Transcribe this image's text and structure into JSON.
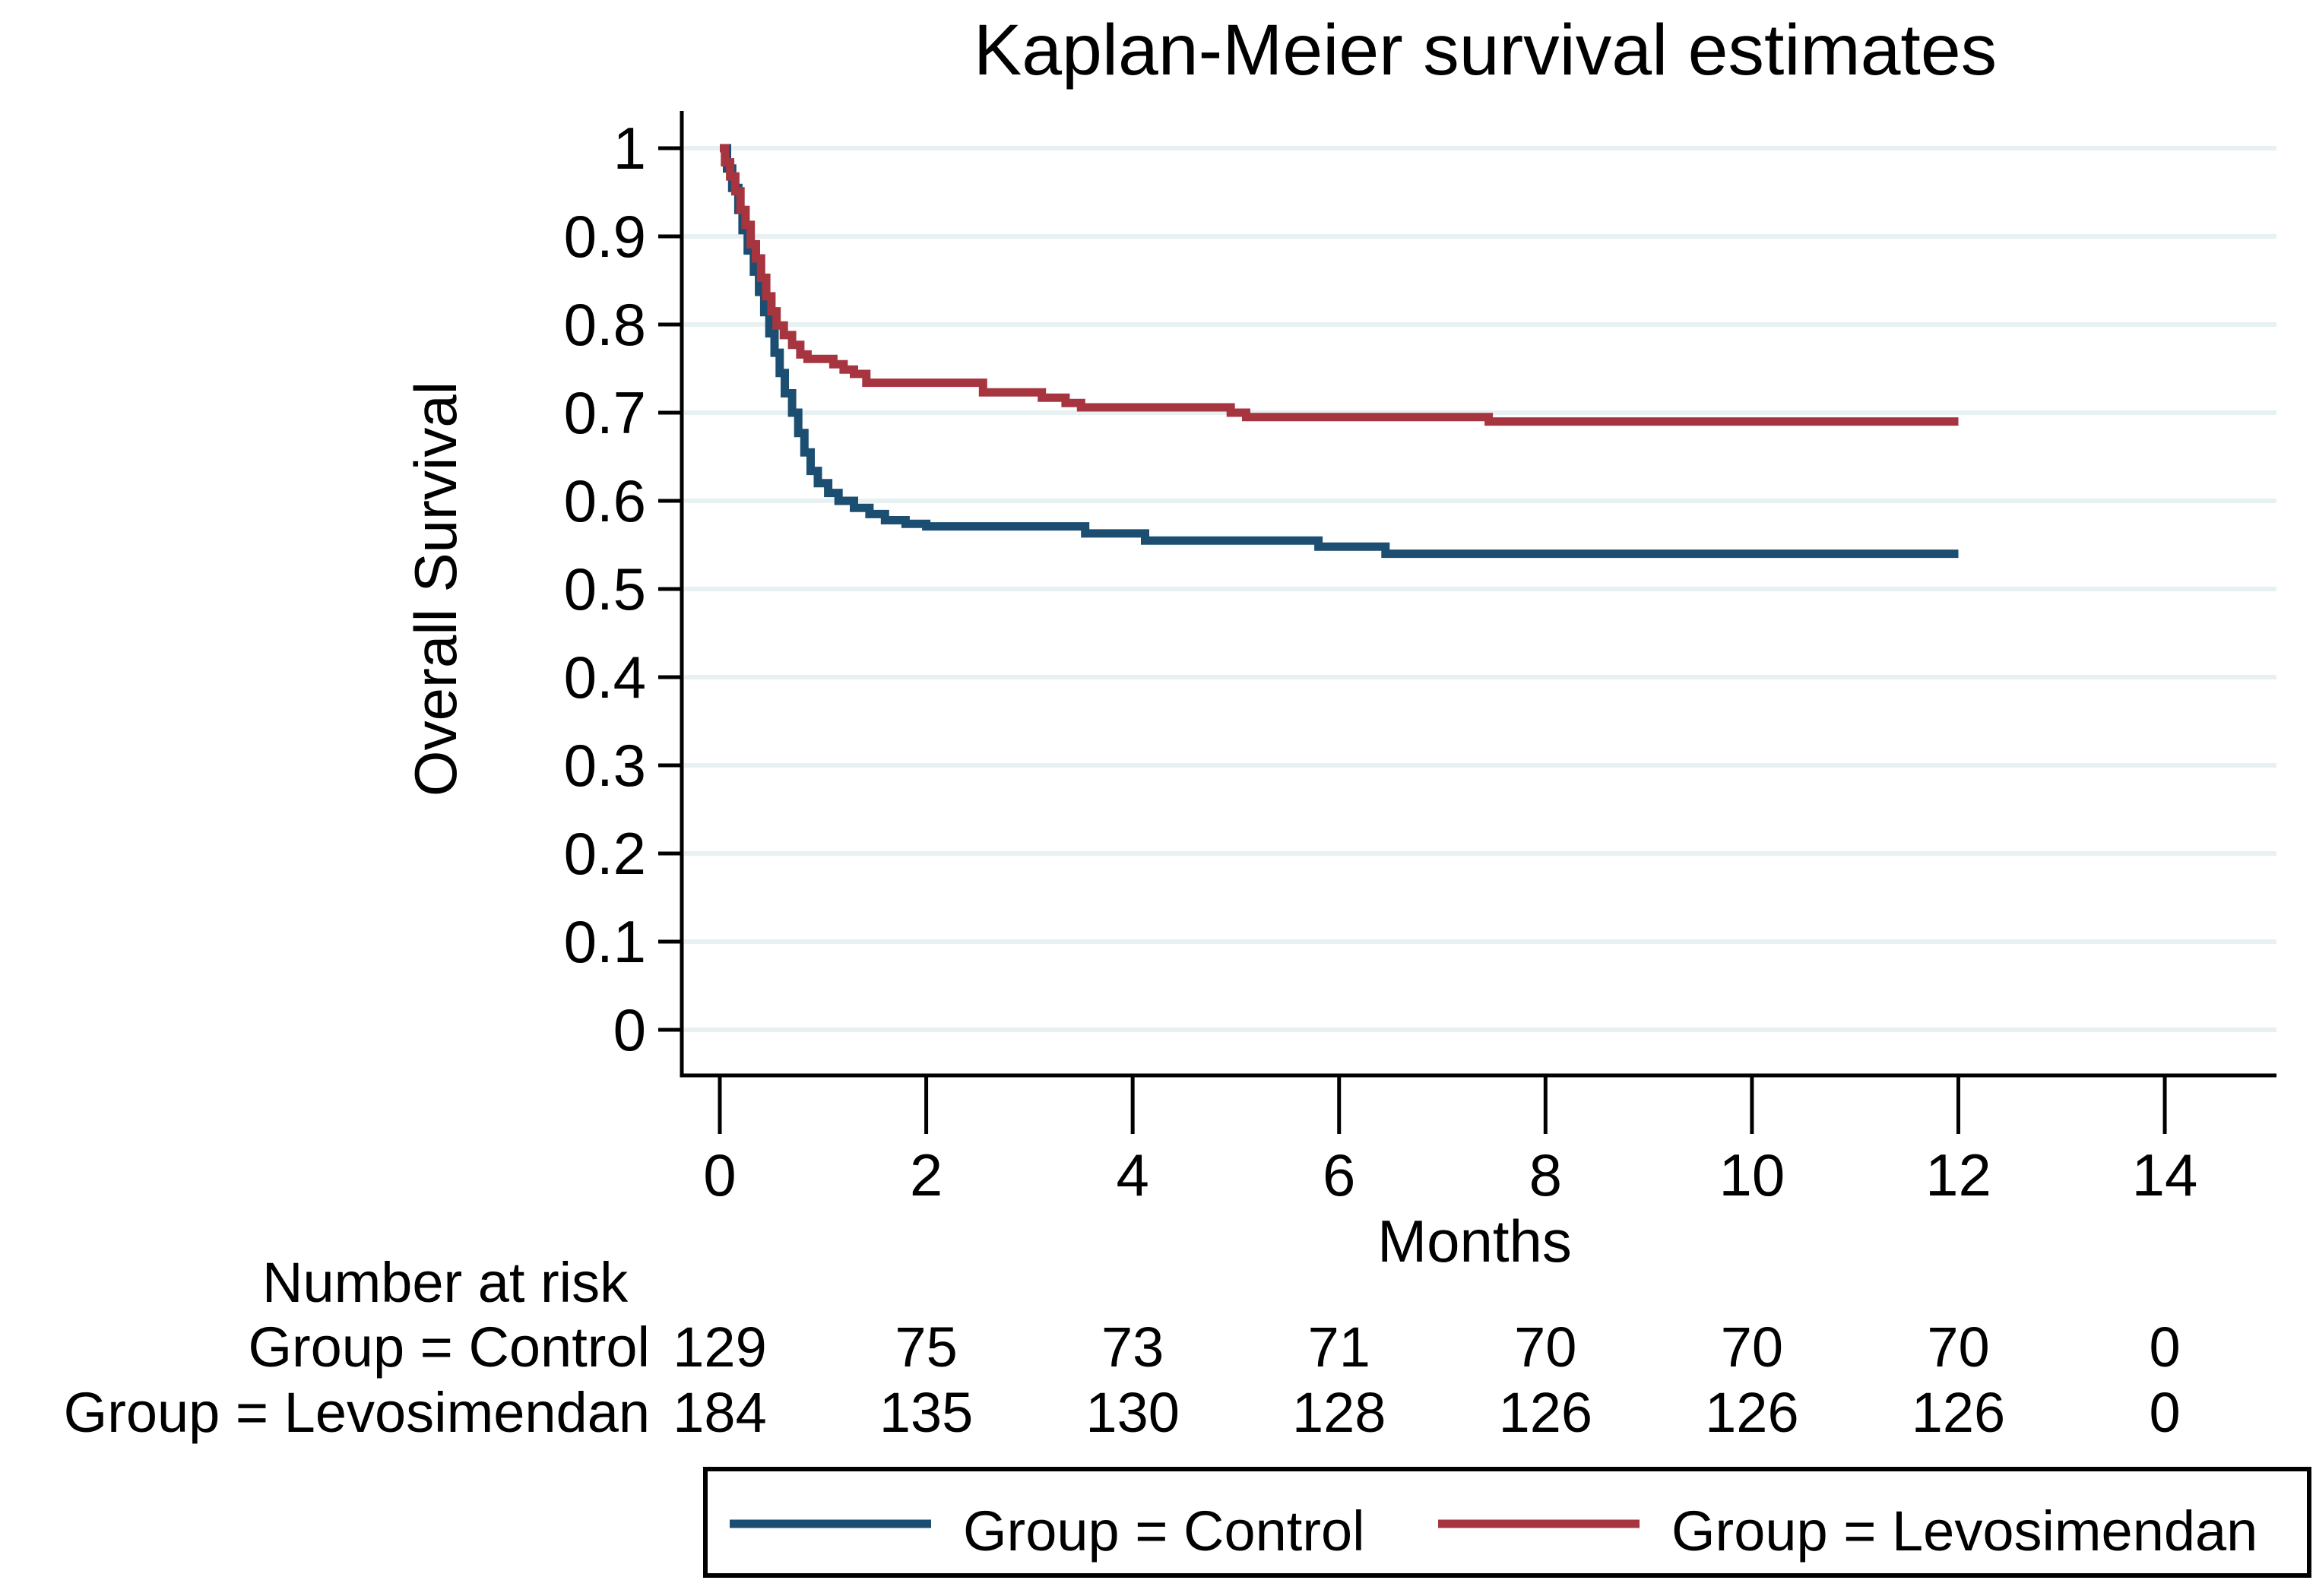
{
  "figure": {
    "background_color": "#ffffff",
    "axis_color": "#000000",
    "title_color": "#1f3a63"
  },
  "chart_data": {
    "type": "line",
    "subtype": "kaplan-meier-step-survival",
    "title": "Kaplan-Meier survival estimates",
    "xlabel": "Months",
    "ylabel": "Overall Survival",
    "xlim": [
      0,
      15
    ],
    "ylim": [
      0,
      1
    ],
    "xticks": [
      0,
      2,
      4,
      6,
      8,
      10,
      12,
      14
    ],
    "yticks": [
      0,
      0.1,
      0.2,
      0.3,
      0.4,
      0.5,
      0.6,
      0.7,
      0.8,
      0.9,
      1
    ],
    "ytick_labels": [
      "0",
      "0.1",
      "0.2",
      "0.3",
      "0.4",
      "0.5",
      "0.6",
      "0.7",
      "0.8",
      "0.9",
      "1"
    ],
    "grid": "horizontal",
    "gridline_color": "#e7f1f2",
    "legend_position": "bottom",
    "legend_border_color": "#000000",
    "series": [
      {
        "name": "Group = Control",
        "color": "#1b4e70",
        "step": true,
        "points": [
          [
            0,
            1
          ],
          [
            0.07,
            0.977
          ],
          [
            0.12,
            0.955
          ],
          [
            0.18,
            0.93
          ],
          [
            0.22,
            0.907
          ],
          [
            0.27,
            0.884
          ],
          [
            0.33,
            0.86
          ],
          [
            0.38,
            0.837
          ],
          [
            0.43,
            0.814
          ],
          [
            0.48,
            0.79
          ],
          [
            0.53,
            0.768
          ],
          [
            0.58,
            0.745
          ],
          [
            0.63,
            0.722
          ],
          [
            0.7,
            0.7
          ],
          [
            0.76,
            0.677
          ],
          [
            0.82,
            0.655
          ],
          [
            0.88,
            0.634
          ],
          [
            0.95,
            0.62
          ],
          [
            1.05,
            0.609
          ],
          [
            1.15,
            0.6
          ],
          [
            1.3,
            0.592
          ],
          [
            1.45,
            0.585
          ],
          [
            1.6,
            0.578
          ],
          [
            1.8,
            0.574
          ],
          [
            2.0,
            0.571
          ],
          [
            3.54,
            0.563
          ],
          [
            4.12,
            0.555
          ],
          [
            5.8,
            0.548
          ],
          [
            6.45,
            0.54
          ],
          [
            12,
            0.54
          ]
        ]
      },
      {
        "name": "Group = Levosimendan",
        "color": "#a63540",
        "step": true,
        "points": [
          [
            0,
            1
          ],
          [
            0.05,
            0.984
          ],
          [
            0.1,
            0.968
          ],
          [
            0.15,
            0.951
          ],
          [
            0.2,
            0.93
          ],
          [
            0.25,
            0.913
          ],
          [
            0.3,
            0.891
          ],
          [
            0.35,
            0.875
          ],
          [
            0.4,
            0.853
          ],
          [
            0.45,
            0.832
          ],
          [
            0.5,
            0.815
          ],
          [
            0.55,
            0.799
          ],
          [
            0.62,
            0.788
          ],
          [
            0.7,
            0.777
          ],
          [
            0.78,
            0.766
          ],
          [
            0.85,
            0.761
          ],
          [
            1.1,
            0.755
          ],
          [
            1.2,
            0.749
          ],
          [
            1.3,
            0.744
          ],
          [
            1.42,
            0.734
          ],
          [
            2.55,
            0.723
          ],
          [
            3.12,
            0.717
          ],
          [
            3.35,
            0.711
          ],
          [
            3.5,
            0.706
          ],
          [
            4.95,
            0.7
          ],
          [
            5.1,
            0.695
          ],
          [
            7.45,
            0.69
          ],
          [
            12,
            0.69
          ]
        ]
      }
    ],
    "risk_table": {
      "title": "Number at risk",
      "times": [
        0,
        2,
        4,
        6,
        8,
        10,
        12,
        14
      ],
      "rows": [
        {
          "label": "Group = Control",
          "counts": [
            "129",
            "75",
            "73",
            "71",
            "70",
            "70",
            "70",
            "0"
          ]
        },
        {
          "label": "Group = Levosimendan",
          "counts": [
            "184",
            "135",
            "130",
            "128",
            "126",
            "126",
            "126",
            "0"
          ]
        }
      ]
    },
    "legend": [
      "Group = Control",
      "Group = Levosimendan"
    ]
  }
}
